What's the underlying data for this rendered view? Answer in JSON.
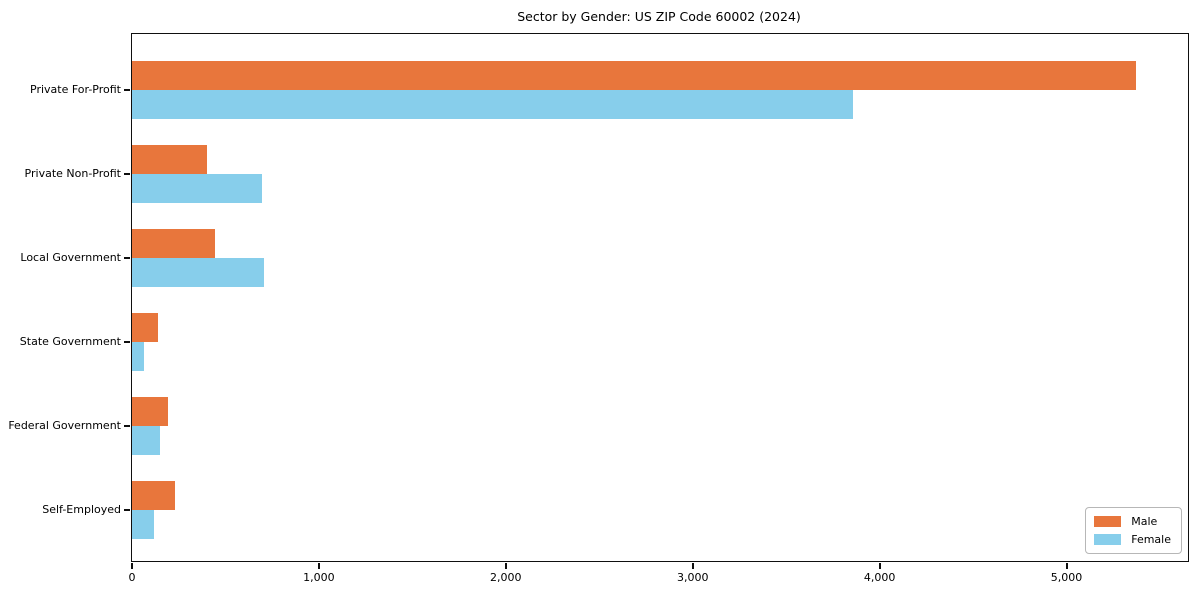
{
  "chart_data": {
    "type": "bar",
    "orientation": "horizontal",
    "title": "Sector by Gender: US ZIP Code 60002 (2024)",
    "categories": [
      "Private For-Profit",
      "Private Non-Profit",
      "Local Government",
      "State Government",
      "Federal Government",
      "Self-Employed"
    ],
    "series": [
      {
        "name": "Male",
        "color": "#E8763C",
        "values": [
          5370,
          400,
          445,
          140,
          195,
          230
        ]
      },
      {
        "name": "Female",
        "color": "#87CEEB",
        "values": [
          3860,
          695,
          705,
          65,
          150,
          120
        ]
      }
    ],
    "xlabel": "",
    "ylabel": "",
    "xlim": [
      0,
      5650
    ],
    "x_ticks": [
      {
        "value": 0,
        "label": "0"
      },
      {
        "value": 1000,
        "label": "1,000"
      },
      {
        "value": 2000,
        "label": "2,000"
      },
      {
        "value": 3000,
        "label": "3,000"
      },
      {
        "value": 4000,
        "label": "4,000"
      },
      {
        "value": 5000,
        "label": "5,000"
      }
    ],
    "grid": false,
    "legend": {
      "position": "lower right"
    },
    "colors": {
      "male": "#E8763C",
      "female": "#87CEEB",
      "axis": "#0f0f0f",
      "background": "#ffffff"
    }
  }
}
